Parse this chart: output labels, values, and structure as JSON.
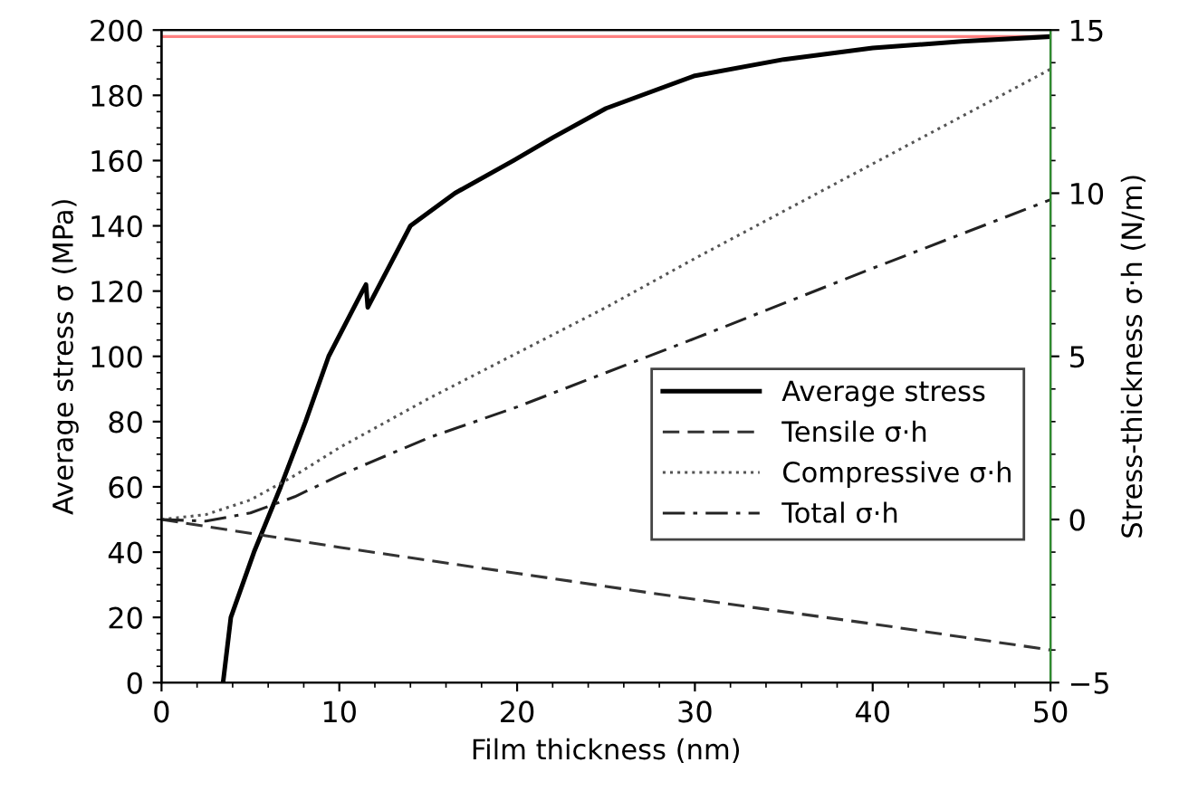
{
  "chart_data": {
    "type": "line",
    "xlabel": "Film thickness (nm)",
    "ylabel": "Average stress σ (MPa)",
    "y2label": "Stress-thickness σ·h (N/m)",
    "xlim": [
      0,
      50
    ],
    "xticks": [
      0,
      10,
      20,
      30,
      40,
      50
    ],
    "ylim": [
      0,
      200
    ],
    "yticks": [
      0,
      20,
      40,
      60,
      80,
      100,
      120,
      140,
      160,
      180,
      200
    ],
    "y2lim": [
      -5,
      15
    ],
    "y2ticks": [
      {
        "value": -5,
        "label": "−5"
      },
      0,
      5,
      10,
      15
    ],
    "grid": false,
    "legend": "center right",
    "marker": "none",
    "ref_lines": [
      {
        "axis": "y",
        "value": 198,
        "color": "#ff8080",
        "line_style": "solid"
      }
    ],
    "series": [
      {
        "name": "Average stress",
        "color": "#000000",
        "line_style": "solid",
        "x": [
          3.46,
          3.9,
          5.2,
          6.7,
          8.1,
          9.4,
          11.3,
          11.5,
          11.6,
          14,
          16.5,
          19.8,
          22,
          25,
          30,
          35,
          40,
          45,
          50
        ],
        "values": [
          0,
          20,
          40,
          60,
          80,
          100,
          120,
          122,
          115,
          140,
          150,
          160,
          167,
          176,
          186,
          191,
          194.5,
          196.5,
          198
        ]
      },
      {
        "name": "Tensile σ·h",
        "color": "#333333",
        "line_style": "dashed",
        "axis": "y2",
        "x": [
          0,
          10,
          20,
          30,
          40,
          50
        ],
        "values": [
          0,
          -0.85,
          -1.65,
          -2.45,
          -3.2,
          -4
        ]
      },
      {
        "name": "Compressive σ·h",
        "color": "#555555",
        "line_style": "dotted",
        "axis": "y2",
        "x": [
          0,
          2.5,
          5,
          7.5,
          10,
          15,
          20,
          25,
          30,
          40,
          50
        ],
        "values": [
          0,
          0.15,
          0.6,
          1.35,
          2.2,
          3.7,
          5.1,
          6.5,
          8.0,
          10.9,
          13.8
        ]
      },
      {
        "name": "Total σ·h",
        "color": "#222222",
        "line_style": "dashdot",
        "axis": "y2",
        "x": [
          0,
          2.5,
          5,
          7.5,
          10,
          15,
          20,
          25,
          30,
          40,
          50
        ],
        "values": [
          0,
          -0.05,
          0.2,
          0.7,
          1.35,
          2.5,
          3.45,
          4.5,
          5.55,
          7.7,
          9.8
        ]
      }
    ]
  }
}
